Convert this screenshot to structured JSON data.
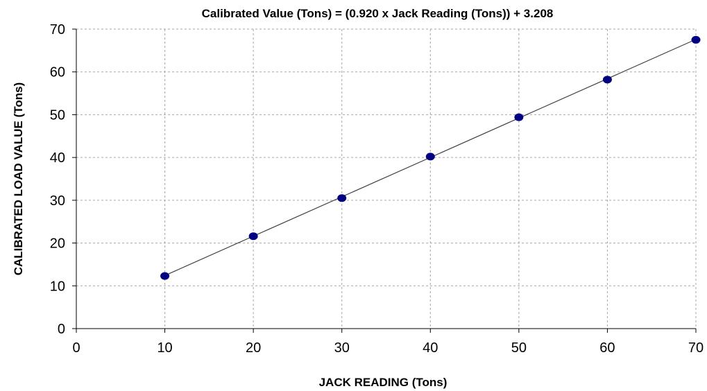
{
  "chart_data": {
    "type": "scatter",
    "title": "Calibrated Value (Tons) = (0.920 x Jack Reading (Tons)) + 3.208",
    "xlabel": "JACK READING (Tons)",
    "ylabel": "CALIBRATED LOAD VALUE  (Tons)",
    "xlim": [
      0,
      70
    ],
    "ylim": [
      0,
      70
    ],
    "x_ticks": [
      0,
      10,
      20,
      30,
      40,
      50,
      60,
      70
    ],
    "y_ticks": [
      0,
      10,
      20,
      30,
      40,
      50,
      60,
      70
    ],
    "grid": true,
    "series": [
      {
        "x": [
          10,
          20,
          30,
          40,
          50,
          60,
          70
        ],
        "y": [
          12.3,
          21.6,
          30.5,
          40.2,
          49.4,
          58.2,
          67.5
        ],
        "color": "#000080"
      }
    ],
    "trendline": {
      "slope": 0.92,
      "intercept": 3.208,
      "color": "#404040"
    }
  }
}
